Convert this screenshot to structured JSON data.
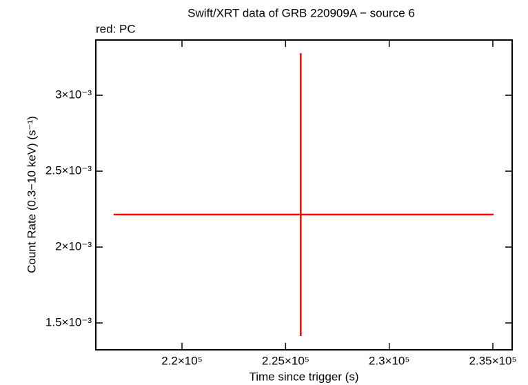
{
  "chart_data": {
    "type": "errorbar",
    "title": "Swift/XRT data of GRB 220909A − source 6",
    "subtitle": "red: PC",
    "x_label": "Time since trigger (s)",
    "y_label": "Count Rate (0.3−10 keV) (s⁻¹)",
    "xlim": [
      215842,
      235931
    ],
    "ylim": [
      0.001323,
      0.003364
    ],
    "xticks": [
      {
        "value": 220000,
        "label": "2.2×10⁵"
      },
      {
        "value": 225000,
        "label": "2.25×10⁵"
      },
      {
        "value": 230000,
        "label": "2.3×10⁵"
      },
      {
        "value": 235000,
        "label": "2.35×10⁵"
      }
    ],
    "yticks": [
      {
        "value": 0.0015,
        "label": "1.5×10⁻³"
      },
      {
        "value": 0.002,
        "label": "2×10⁻³"
      },
      {
        "value": 0.0025,
        "label": "2.5×10⁻³"
      },
      {
        "value": 0.003,
        "label": "3×10⁻³"
      }
    ],
    "series": [
      {
        "name": "PC",
        "color": "#ff0000",
        "x": [
          225732
        ],
        "values": [
          0.002214
        ],
        "xerr_minus": [
          9025
        ],
        "xerr_plus": [
          9301
        ],
        "yerr_minus": [
          0.0008
        ],
        "yerr_plus": [
          0.001063
        ]
      }
    ]
  }
}
